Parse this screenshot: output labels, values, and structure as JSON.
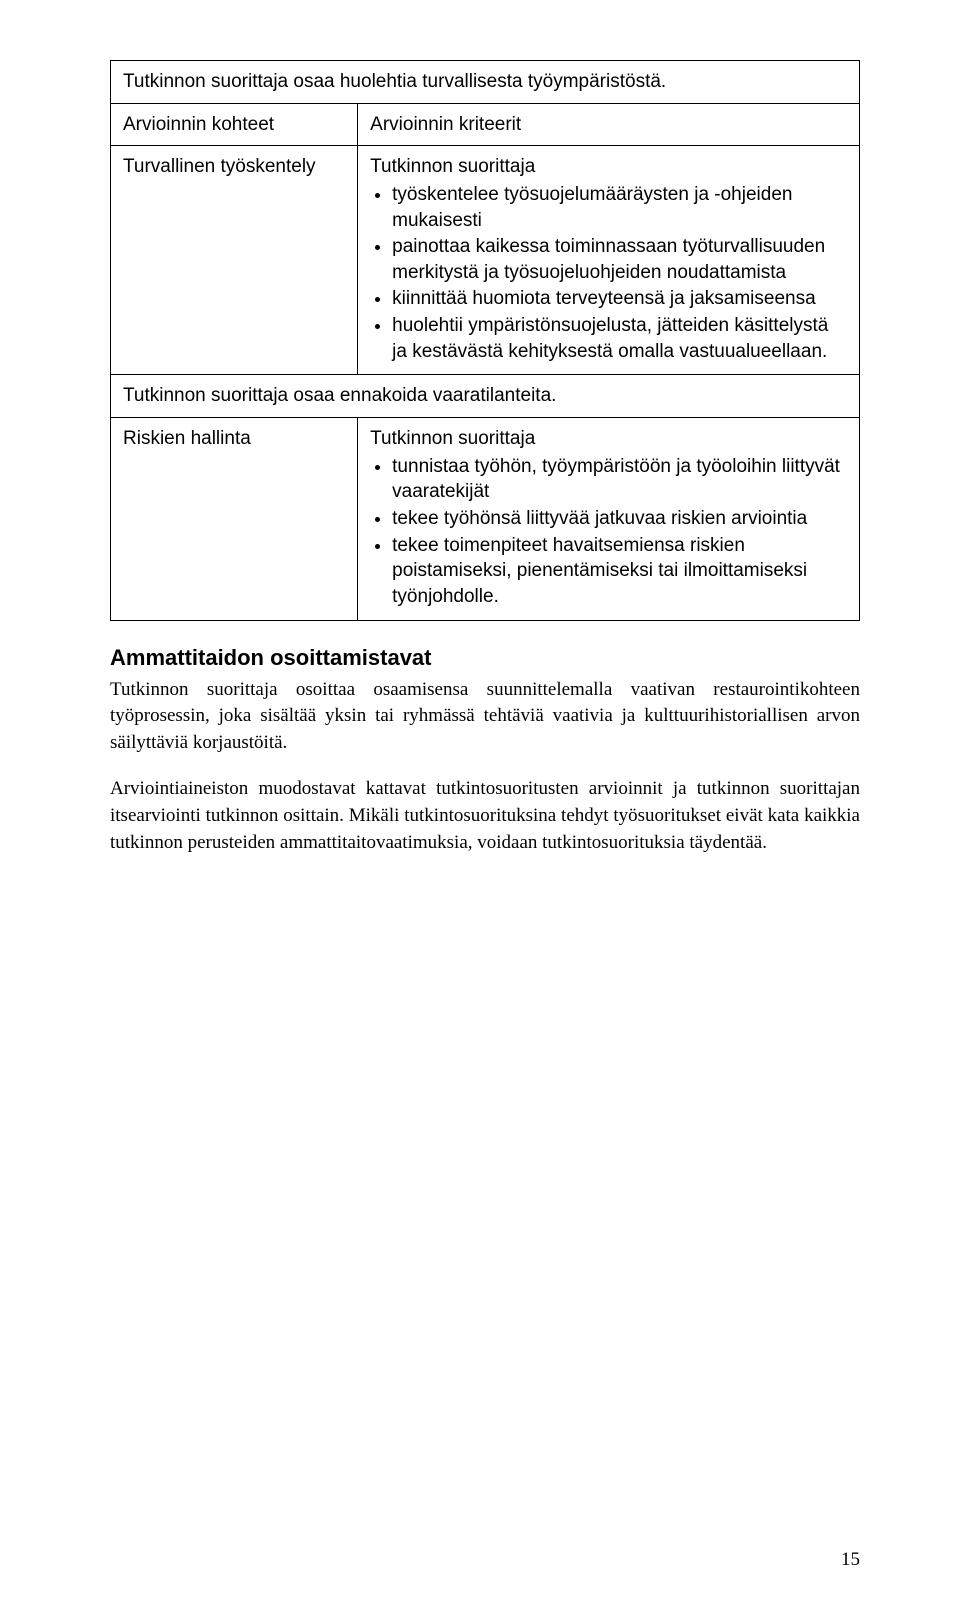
{
  "table": {
    "section1_header": "Tutkinnon suorittaja osaa huolehtia turvallisesta työympäristöstä.",
    "col_left_header": "Arvioinnin kohteet",
    "col_right_header": "Arvioinnin kriteerit",
    "row1_left": "Turvallinen työskentely",
    "row1_right_intro": "Tutkinnon suorittaja",
    "row1_bullets": [
      "työskentelee työsuojelumääräysten ja -ohjeiden mukaisesti",
      "painottaa kaikessa toiminnassaan työturvallisuuden merkitystä ja työsuojeluohjeiden noudattamista",
      "kiinnittää huomiota terveyteensä ja jaksamiseensa",
      "huolehtii ympäristönsuojelusta, jätteiden käsittelystä ja kestävästä kehityksestä omalla vastuualueellaan."
    ],
    "section2_header": "Tutkinnon suorittaja osaa ennakoida vaaratilanteita.",
    "row2_left": "Riskien hallinta",
    "row2_right_intro": "Tutkinnon suorittaja",
    "row2_bullets": [
      "tunnistaa työhön, työympäristöön ja työoloihin liittyvät vaaratekijät",
      "tekee työhönsä liittyvää jatkuvaa riskien arviointia",
      "tekee toimenpiteet havaitsemiensa riskien poistamiseksi, pienentämiseksi tai ilmoittamiseksi työnjohdolle."
    ]
  },
  "subhead": "Ammattitaidon osoittamistavat",
  "para1": "Tutkinnon suorittaja osoittaa osaamisensa suunnittelemalla vaativan restaurointikohteen työprosessin, joka sisältää yksin tai ryhmässä tehtäviä vaativia ja kulttuurihistoriallisen arvon säilyttäviä korjaustöitä.",
  "para2": "Arviointiaineiston muodostavat kattavat tutkintosuoritusten arvioinnit ja tutkinnon suorittajan itsearviointi tutkinnon osittain. Mikäli tutkintosuorituksina tehdyt työsuoritukset eivät kata kaikkia tutkinnon perusteiden ammattitaitovaatimuksia, voidaan tutkintosuorituksia täydentää.",
  "page_number": "15"
}
